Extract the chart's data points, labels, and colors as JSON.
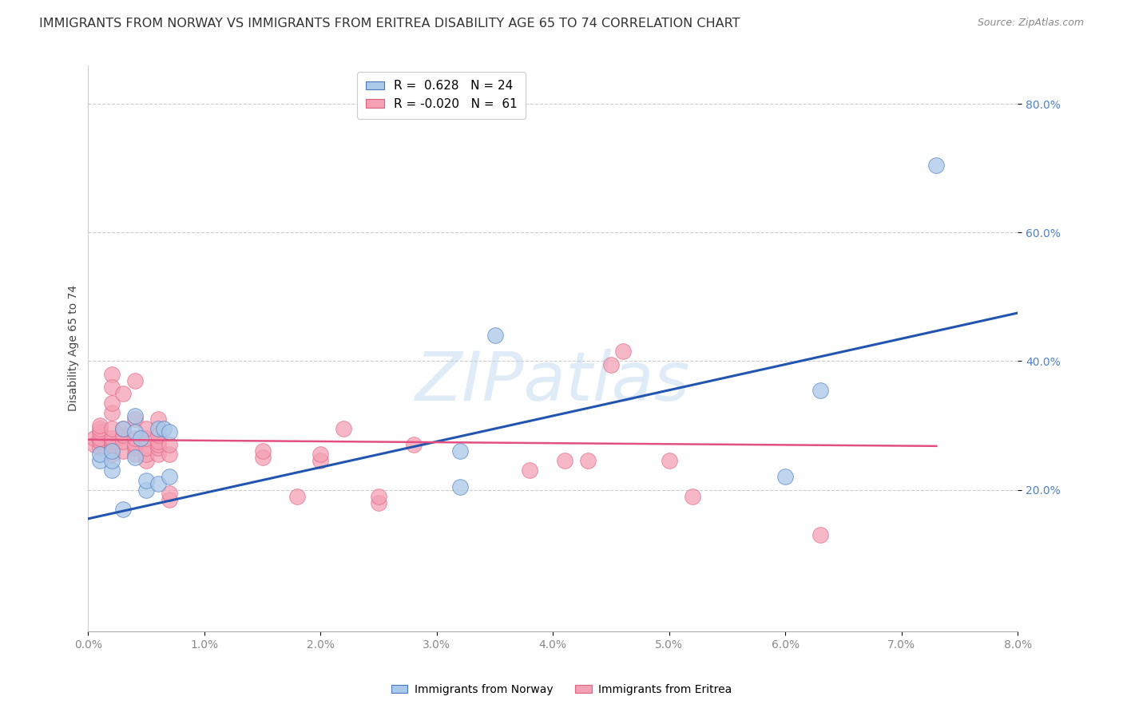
{
  "title": "IMMIGRANTS FROM NORWAY VS IMMIGRANTS FROM ERITREA DISABILITY AGE 65 TO 74 CORRELATION CHART",
  "source": "Source: ZipAtlas.com",
  "ylabel": "Disability Age 65 to 74",
  "xlim": [
    0.0,
    0.08
  ],
  "ylim": [
    -0.02,
    0.86
  ],
  "yticks": [
    0.2,
    0.4,
    0.6,
    0.8
  ],
  "xticks": [
    0.0,
    0.01,
    0.02,
    0.03,
    0.04,
    0.05,
    0.06,
    0.07,
    0.08
  ],
  "norway_color": "#aac8e8",
  "eritrea_color": "#f4a0b5",
  "norway_edge_color": "#4878c0",
  "eritrea_edge_color": "#e06080",
  "norway_line_color": "#2255b0",
  "eritrea_line_color": "#e05080",
  "watermark_text": "ZIPatlas",
  "legend_norway_r": "0.628",
  "legend_norway_n": "24",
  "legend_eritrea_r": "-0.020",
  "legend_eritrea_n": "61",
  "norway_scatter_x": [
    0.001,
    0.001,
    0.002,
    0.002,
    0.002,
    0.003,
    0.003,
    0.004,
    0.004,
    0.004,
    0.0045,
    0.005,
    0.005,
    0.006,
    0.006,
    0.0065,
    0.007,
    0.007,
    0.032,
    0.032,
    0.035,
    0.06,
    0.063,
    0.073
  ],
  "norway_scatter_y": [
    0.245,
    0.255,
    0.23,
    0.245,
    0.26,
    0.17,
    0.295,
    0.25,
    0.29,
    0.315,
    0.28,
    0.2,
    0.215,
    0.295,
    0.21,
    0.295,
    0.22,
    0.29,
    0.205,
    0.26,
    0.44,
    0.22,
    0.355,
    0.705
  ],
  "eritrea_scatter_x": [
    0.0005,
    0.0005,
    0.001,
    0.001,
    0.001,
    0.001,
    0.001,
    0.001,
    0.002,
    0.002,
    0.002,
    0.002,
    0.002,
    0.002,
    0.002,
    0.002,
    0.002,
    0.002,
    0.003,
    0.003,
    0.003,
    0.003,
    0.003,
    0.004,
    0.004,
    0.004,
    0.004,
    0.004,
    0.004,
    0.005,
    0.005,
    0.005,
    0.005,
    0.005,
    0.006,
    0.006,
    0.006,
    0.006,
    0.006,
    0.006,
    0.007,
    0.007,
    0.007,
    0.007,
    0.015,
    0.015,
    0.018,
    0.02,
    0.02,
    0.022,
    0.025,
    0.025,
    0.028,
    0.038,
    0.041,
    0.043,
    0.045,
    0.046,
    0.05,
    0.052,
    0.063
  ],
  "eritrea_scatter_y": [
    0.27,
    0.28,
    0.265,
    0.275,
    0.28,
    0.29,
    0.295,
    0.3,
    0.255,
    0.265,
    0.27,
    0.275,
    0.28,
    0.295,
    0.32,
    0.335,
    0.38,
    0.36,
    0.26,
    0.275,
    0.285,
    0.295,
    0.35,
    0.255,
    0.265,
    0.27,
    0.28,
    0.31,
    0.37,
    0.245,
    0.255,
    0.265,
    0.28,
    0.295,
    0.255,
    0.265,
    0.27,
    0.275,
    0.285,
    0.31,
    0.185,
    0.195,
    0.255,
    0.27,
    0.25,
    0.26,
    0.19,
    0.245,
    0.255,
    0.295,
    0.18,
    0.19,
    0.27,
    0.23,
    0.245,
    0.245,
    0.395,
    0.415,
    0.245,
    0.19,
    0.13
  ],
  "norway_trend_x": [
    0.0,
    0.08
  ],
  "norway_trend_y": [
    0.155,
    0.475
  ],
  "eritrea_trend_x": [
    0.0,
    0.073
  ],
  "eritrea_trend_y": [
    0.278,
    0.268
  ],
  "background_color": "#ffffff",
  "grid_color": "#cccccc",
  "title_fontsize": 11.5,
  "axis_label_fontsize": 10,
  "tick_fontsize": 10,
  "legend_fontsize": 11
}
